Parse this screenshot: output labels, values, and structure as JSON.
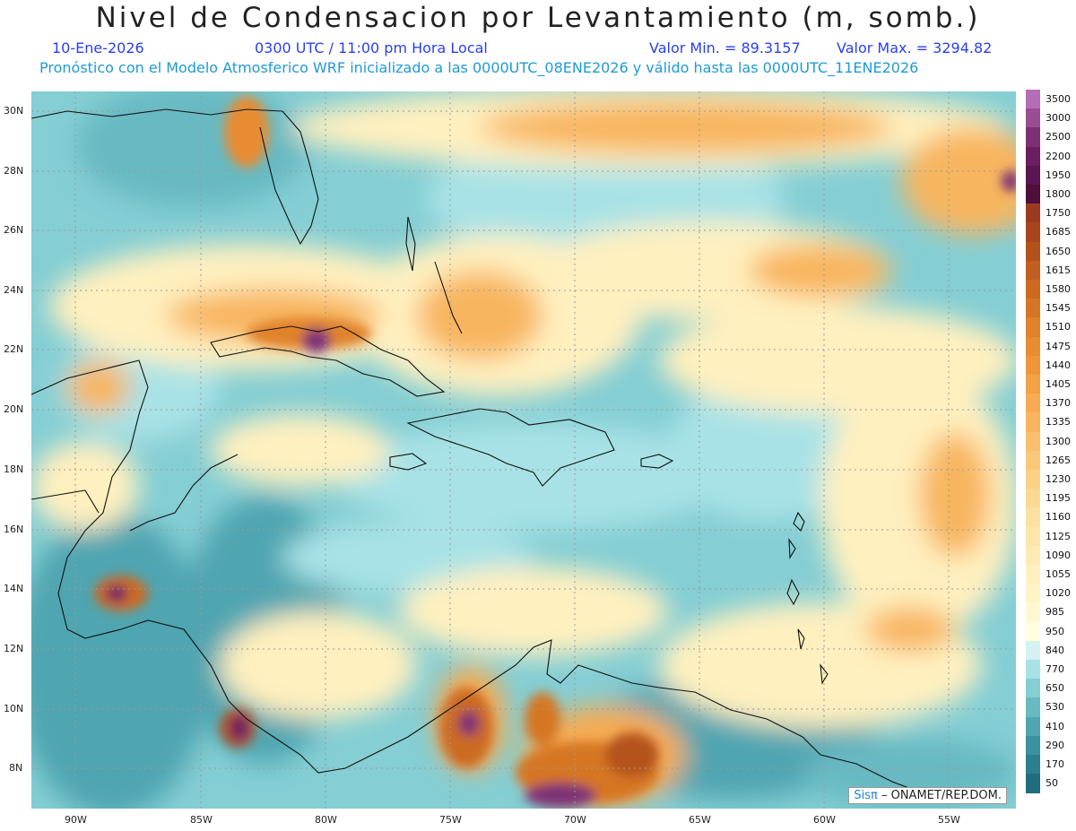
{
  "header": {
    "title": "Nivel de Condensacion por Levantamiento (m, somb.)",
    "date": "10-Ene-2026",
    "time": "0300 UTC / 11:00 pm Hora Local",
    "min_label": "Valor Min. = 89.3157",
    "max_label": "Valor Max. = 3294.82",
    "model_line": "Pronóstico con el Modelo Atmosferico WRF inicializado a las 0000UTC_08ENE2026 y válido hasta las  0000UTC_11ENE2026"
  },
  "axes": {
    "lat_labels": [
      "30N",
      "28N",
      "26N",
      "24N",
      "22N",
      "20N",
      "18N",
      "16N",
      "14N",
      "12N",
      "10N",
      "8N"
    ],
    "lon_labels": [
      "90W",
      "85W",
      "80W",
      "75W",
      "70W",
      "65W",
      "60W",
      "55W"
    ]
  },
  "credit": {
    "brand": "Sisπ",
    "text": "– ONAMET/REP.DOM."
  },
  "legend": {
    "levels": [
      "3500",
      "3000",
      "2500",
      "2200",
      "1950",
      "1800",
      "1750",
      "1685",
      "1650",
      "1615",
      "1580",
      "1545",
      "1510",
      "1475",
      "1440",
      "1405",
      "1370",
      "1335",
      "1300",
      "1265",
      "1230",
      "1195",
      "1160",
      "1125",
      "1090",
      "1055",
      "1020",
      "985",
      "950",
      "840",
      "770",
      "650",
      "530",
      "410",
      "290",
      "170",
      "50"
    ],
    "colors": [
      "#b56db5",
      "#9a4d94",
      "#7e3076",
      "#6a1f63",
      "#5a1552",
      "#4e0f3a",
      "#9d3b22",
      "#a8461e",
      "#b4521d",
      "#c25f1f",
      "#cc6a21",
      "#d67624",
      "#e0822a",
      "#e88c31",
      "#ef963a",
      "#f3a146",
      "#f6ab52",
      "#f8b55e",
      "#f9bf6c",
      "#fbc879",
      "#fcd186",
      "#fdd993",
      "#fde09f",
      "#fee6aa",
      "#feebb4",
      "#fff0bf",
      "#fff4c8",
      "#fff7d0",
      "#ffffe0",
      "#d6f1f2",
      "#a8e2e6",
      "#84ced4",
      "#68b9c2",
      "#50a5b1",
      "#3d92a0",
      "#2c7f8f",
      "#206d7e"
    ]
  }
}
